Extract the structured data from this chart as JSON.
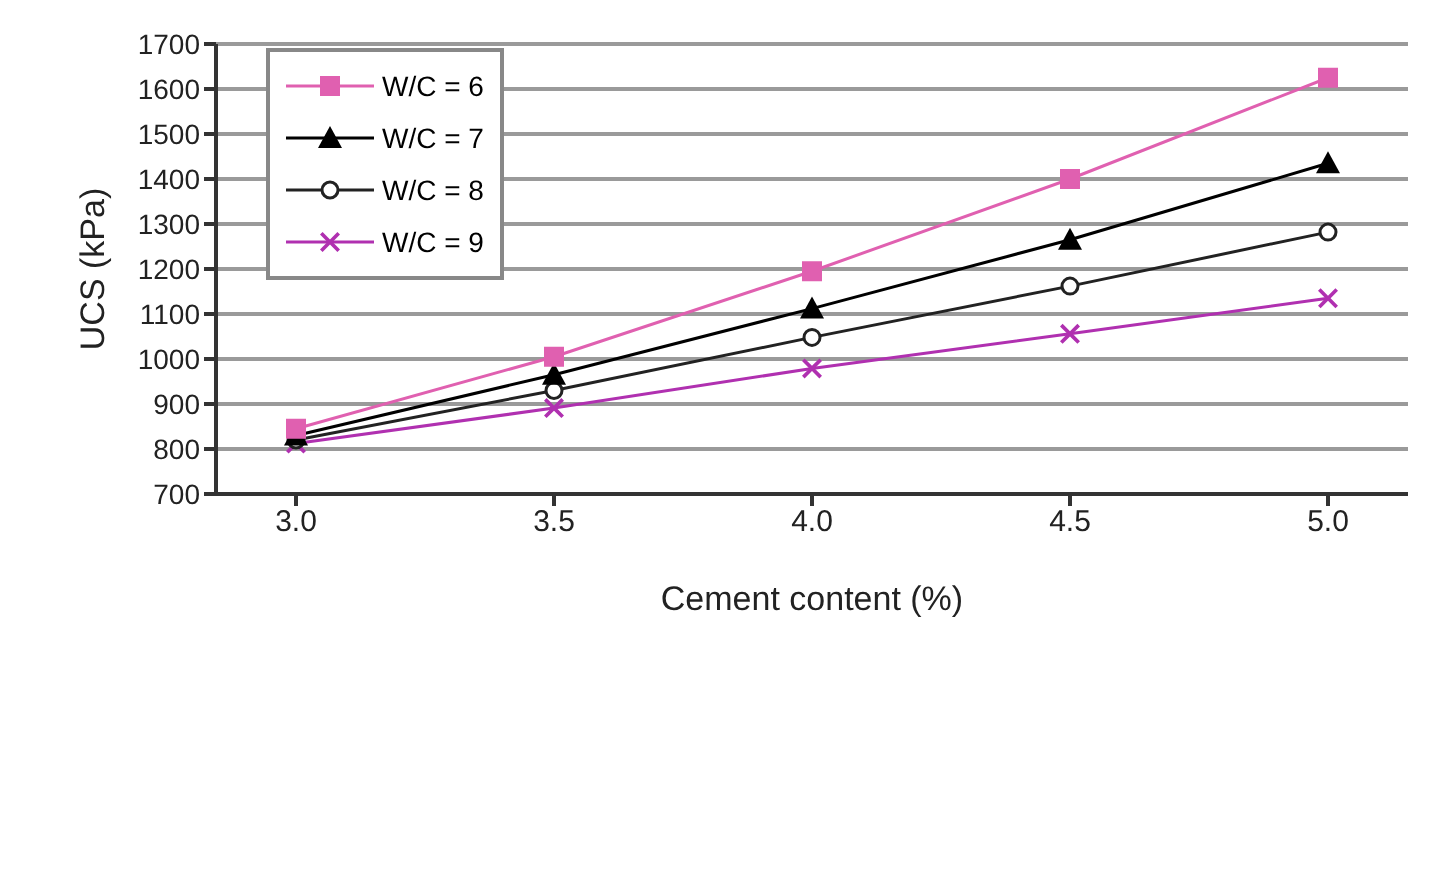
{
  "chart_data": {
    "type": "line",
    "xlabel": "Cement content (%)",
    "ylabel": "UCS (kPa)",
    "categories": [
      "3.0",
      "3.5",
      "4.0",
      "4.5",
      "5.0"
    ],
    "series": [
      {
        "name": "W/C = 6",
        "color": "#e060b0",
        "marker": "square",
        "values": [
          845,
          1005,
          1195,
          1400,
          1625
        ]
      },
      {
        "name": "W/C = 7",
        "color": "#000000",
        "marker": "triangle",
        "values": [
          830,
          965,
          1112,
          1265,
          1435
        ]
      },
      {
        "name": "W/C = 8",
        "color": "#222222",
        "marker": "circle",
        "values": [
          820,
          930,
          1048,
          1162,
          1282
        ]
      },
      {
        "name": "W/C = 9",
        "color": "#b030b0",
        "marker": "cross",
        "values": [
          812,
          891,
          979,
          1056,
          1135
        ]
      }
    ],
    "ylim": [
      700,
      1700
    ],
    "yticks": [
      700,
      800,
      900,
      1000,
      1100,
      1200,
      1300,
      1400,
      1500,
      1600,
      1700
    ],
    "grid": "y",
    "legend": "top left"
  }
}
